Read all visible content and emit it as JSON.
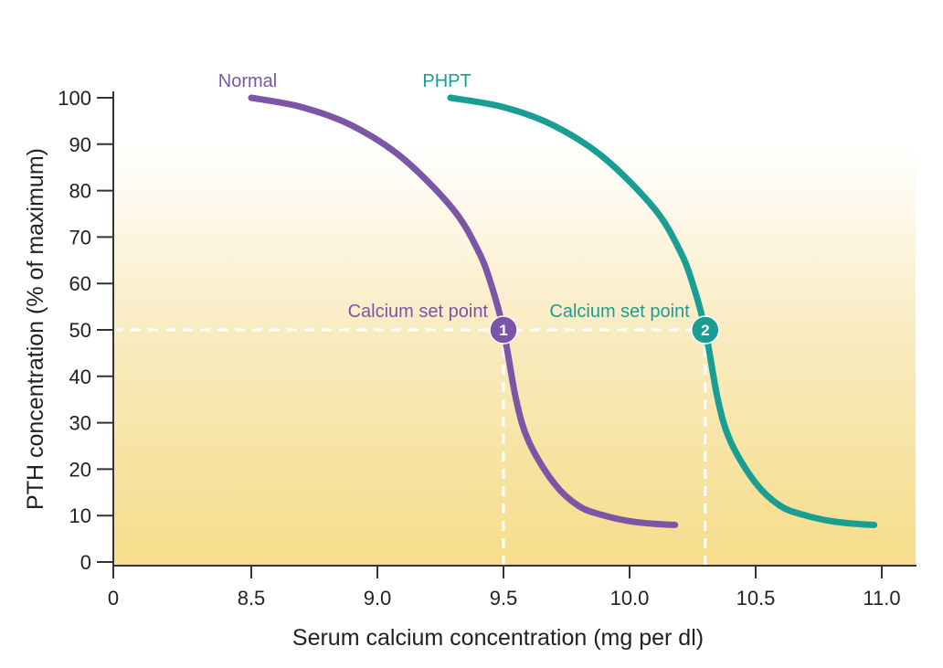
{
  "chart_data": {
    "type": "line",
    "xlabel": "Serum calcium concentration (mg per dl)",
    "ylabel": "PTH concentration (% of maximum)",
    "x_ticks": [
      "0",
      "8.5",
      "9.0",
      "9.5",
      "10.0",
      "10.5",
      "11.0"
    ],
    "y_ticks": [
      "0",
      "10",
      "20",
      "30",
      "40",
      "50",
      "60",
      "70",
      "80",
      "90",
      "100"
    ],
    "x_axis_break_after_zero": true,
    "xlim": [
      8.0,
      11.1
    ],
    "ylim": [
      0,
      100
    ],
    "reference_level": 50,
    "series": [
      {
        "name": "Normal",
        "color": "#7b55a6",
        "x": [
          8.5,
          8.7,
          8.9,
          9.1,
          9.3,
          9.4,
          9.45,
          9.5,
          9.55,
          9.6,
          9.7,
          9.8,
          9.9,
          10.0,
          10.1,
          10.18
        ],
        "y": [
          100,
          98,
          94,
          87,
          76,
          67,
          60,
          50,
          35,
          26,
          17,
          12,
          10,
          8.8,
          8.2,
          8
        ],
        "set_point": {
          "x": 9.5,
          "y": 50,
          "marker": "1",
          "label": "Calcium set point"
        }
      },
      {
        "name": "PHPT",
        "color": "#1a9e93",
        "x": [
          9.29,
          9.5,
          9.7,
          9.9,
          10.1,
          10.2,
          10.25,
          10.3,
          10.35,
          10.4,
          10.5,
          10.6,
          10.7,
          10.8,
          10.9,
          10.97
        ],
        "y": [
          100,
          98,
          94,
          87,
          76,
          67,
          60,
          50,
          35,
          26,
          17,
          12,
          10,
          8.8,
          8.2,
          8
        ],
        "set_point": {
          "x": 10.3,
          "y": 50,
          "marker": "2",
          "label": "Calcium set point"
        }
      }
    ],
    "background": {
      "gradient": true,
      "top_color": "#ffffff",
      "bottom_color": "#f5dd8a"
    }
  }
}
